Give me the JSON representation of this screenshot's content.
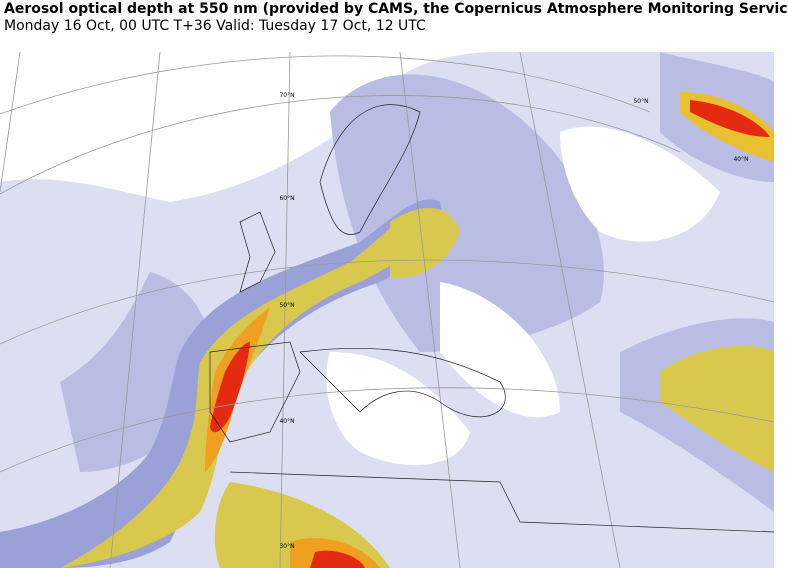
{
  "header": {
    "title": "Aerosol optical depth at 550 nm (provided by CAMS, the Copernicus Atmosphere Monitoring Servic",
    "subtitle": "Monday 16 Oct, 00 UTC T+36 Valid: Tuesday 17 Oct, 12 UTC"
  },
  "map": {
    "latitude_labels": [
      "70°N",
      "60°N",
      "50°N",
      "40°N",
      "30°N",
      "50°N",
      "40°N"
    ]
  }
}
